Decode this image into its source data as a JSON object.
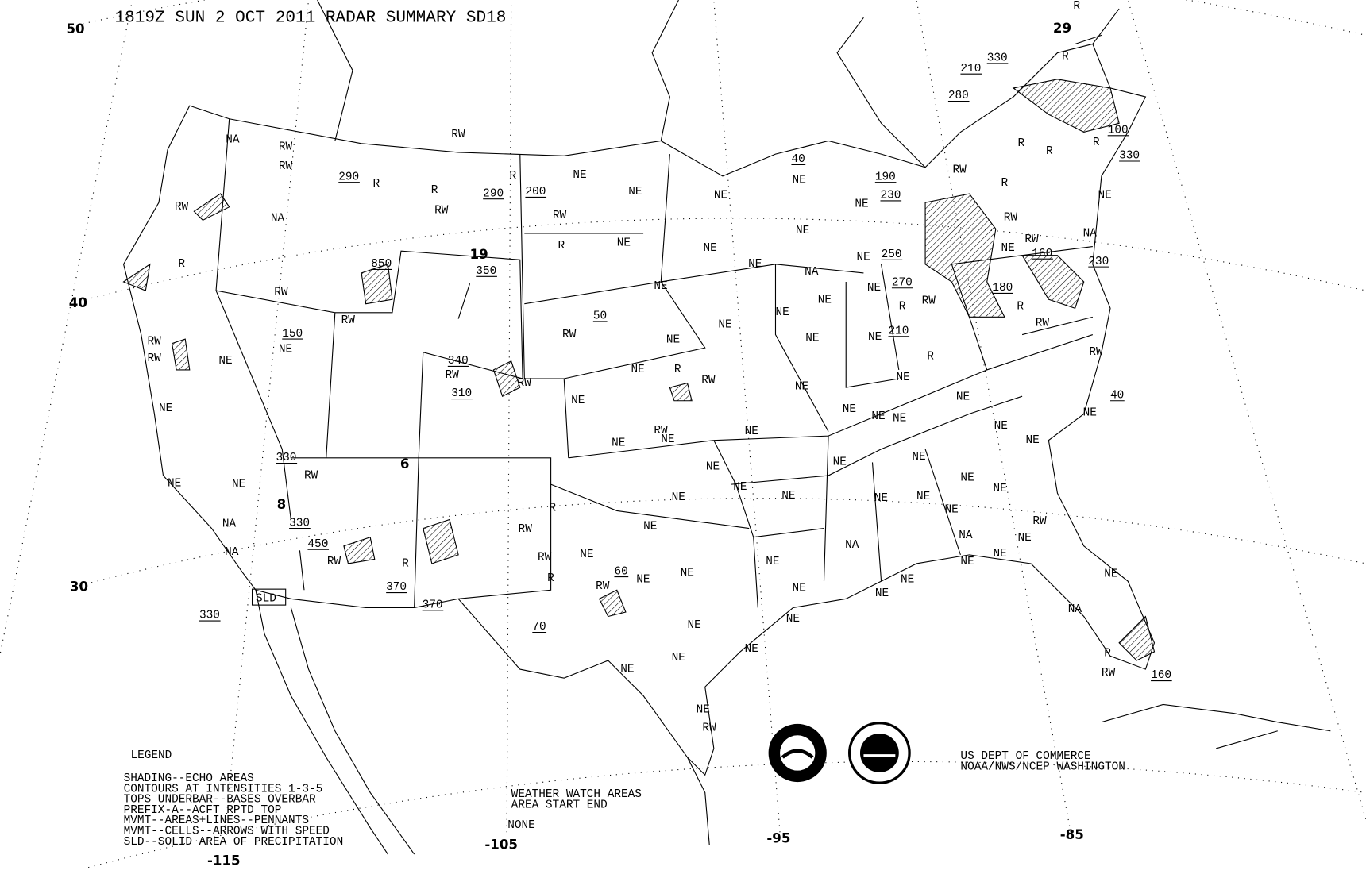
{
  "title": "1819Z SUN  2 OCT 2011 RADAR SUMMARY SD18",
  "latitude_labels": [
    "50",
    "40",
    "30"
  ],
  "longitude_labels": [
    "-115",
    "-105",
    "-95",
    "-85"
  ],
  "echo_codes": {
    "NE": "NE",
    "NA": "NA",
    "RW": "RW",
    "R": "R"
  },
  "tops": [
    "290",
    "290",
    "200",
    "350",
    "850",
    "150",
    "340",
    "310",
    "50",
    "330",
    "330",
    "450",
    "370",
    "370",
    "330",
    "70",
    "60",
    "160",
    "40",
    "210",
    "330",
    "280",
    "190",
    "230",
    "250",
    "270",
    "210",
    "180",
    "160",
    "230",
    "100",
    "330",
    "40"
  ],
  "movement_speeds": [
    "19",
    "29",
    "6",
    "8"
  ],
  "sld_box": "SLD",
  "legend": {
    "heading": "LEGEND",
    "lines": [
      "SHADING--ECHO AREAS",
      "CONTOURS AT INTENSITIES 1-3-5",
      "TOPS UNDERBAR--BASES OVERBAR",
      "PREFIX-A--ACFT RPTD TOP",
      "MVMT--AREAS+LINES--PENNANTS",
      "MVMT--CELLS--ARROWS WITH SPEED",
      "SLD--SOLID AREA OF PRECIPITATION"
    ]
  },
  "watch": {
    "heading": "WEATHER WATCH AREAS",
    "columns": "AREA   START  END",
    "value": "NONE"
  },
  "credit": [
    "US DEPT OF COMMERCE",
    "NOAA/NWS/NCEP WASHINGTON"
  ],
  "logos": {
    "noaa": "NOAA",
    "nws": "NATIONAL WEATHER SERVICE"
  }
}
